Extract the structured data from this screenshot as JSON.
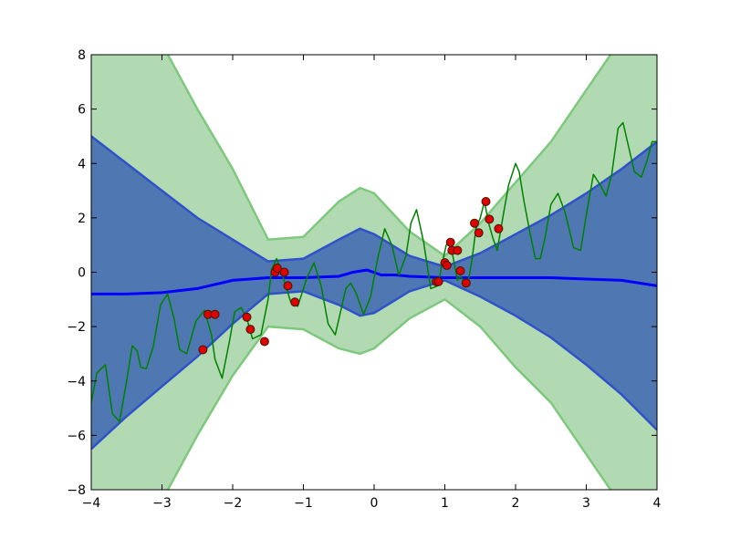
{
  "chart_data": {
    "type": "line",
    "title": "",
    "xlabel": "",
    "ylabel": "",
    "xlim": [
      -4,
      4
    ],
    "ylim": [
      -8,
      8
    ],
    "xticks": [
      -4,
      -3,
      -2,
      -1,
      0,
      1,
      2,
      3,
      4
    ],
    "yticks": [
      -8,
      -6,
      -4,
      -2,
      0,
      2,
      4,
      6,
      8
    ],
    "xtick_labels": [
      "−4",
      "−3",
      "−2",
      "−1",
      "0",
      "1",
      "2",
      "3",
      "4"
    ],
    "ytick_labels": [
      "−8",
      "−6",
      "−4",
      "−2",
      "0",
      "2",
      "4",
      "6",
      "8"
    ],
    "grid": false,
    "legend": "none",
    "colors": {
      "outer_band": "#b2dab2",
      "outer_band_edge": "#7ec87e",
      "inner_band": "#4f78b2",
      "inner_band_edge": "#2f52c8",
      "mean_line": "#0000ff",
      "true_function": "#008000",
      "points_fill": "#e00000",
      "points_edge": "#3a1c00"
    },
    "series": [
      {
        "kind": "band",
        "x": [
          -4,
          -3.5,
          -3,
          -2.5,
          -2,
          -1.5,
          -1,
          -0.5,
          -0.2,
          0,
          0.5,
          1,
          1.5,
          2,
          2.5,
          3,
          3.5,
          4
        ],
        "lower": [
          -11,
          -10,
          -8.4,
          -6.0,
          -3.8,
          -2.0,
          -2.1,
          -2.8,
          -3.0,
          -2.8,
          -1.7,
          -1.0,
          -2.0,
          -3.5,
          -4.8,
          -6.7,
          -8.6,
          -10.5
        ],
        "upper": [
          11,
          10,
          8.4,
          6.0,
          3.8,
          1.2,
          1.3,
          2.6,
          3.1,
          2.9,
          1.5,
          0.6,
          1.8,
          3.3,
          4.8,
          6.7,
          8.6,
          10.5
        ]
      },
      {
        "kind": "band",
        "x": [
          -4,
          -3.5,
          -3,
          -2.5,
          -2,
          -1.5,
          -1,
          -0.5,
          -0.2,
          0,
          0.5,
          1,
          1.5,
          2,
          2.5,
          3,
          3.5,
          4
        ],
        "lower": [
          -6.5,
          -5.3,
          -4.2,
          -3.1,
          -1.9,
          -0.8,
          -0.7,
          -1.2,
          -1.6,
          -1.5,
          -0.7,
          -0.3,
          -0.9,
          -1.6,
          -2.4,
          -3.4,
          -4.5,
          -5.8
        ],
        "upper": [
          5.0,
          4.0,
          3.0,
          2.0,
          1.2,
          0.4,
          0.5,
          1.2,
          1.6,
          1.4,
          0.6,
          0.2,
          0.7,
          1.4,
          2.1,
          2.9,
          3.8,
          4.8
        ]
      },
      {
        "kind": "mean",
        "x": [
          -4,
          -3.5,
          -3,
          -2.5,
          -2,
          -1.5,
          -1,
          -0.5,
          -0.3,
          -0.1,
          0.1,
          0.3,
          0.5,
          1,
          1.5,
          2,
          2.5,
          3,
          3.5,
          4
        ],
        "y": [
          -0.8,
          -0.8,
          -0.75,
          -0.6,
          -0.3,
          -0.2,
          -0.2,
          -0.15,
          0.0,
          0.08,
          -0.1,
          -0.1,
          -0.15,
          -0.2,
          -0.2,
          -0.2,
          -0.2,
          -0.25,
          -0.3,
          -0.5
        ]
      },
      {
        "kind": "true_function",
        "x": [
          -4,
          -3.92,
          -3.8,
          -3.7,
          -3.6,
          -3.5,
          -3.42,
          -3.35,
          -3.3,
          -3.22,
          -3.12,
          -3.02,
          -2.92,
          -2.83,
          -2.75,
          -2.65,
          -2.52,
          -2.4,
          -2.3,
          -2.25,
          -2.15,
          -2.05,
          -1.97,
          -1.88,
          -1.8,
          -1.72,
          -1.6,
          -1.5,
          -1.45,
          -1.38,
          -1.32,
          -1.25,
          -1.18,
          -1.08,
          -0.95,
          -0.85,
          -0.75,
          -0.65,
          -0.55,
          -0.47,
          -0.4,
          -0.33,
          -0.25,
          -0.15,
          -0.05,
          0.0,
          0.05,
          0.15,
          0.25,
          0.35,
          0.45,
          0.52,
          0.6,
          0.7,
          0.8,
          0.9,
          0.96,
          1.02,
          1.08,
          1.12,
          1.18,
          1.22,
          1.28,
          1.32,
          1.38,
          1.44,
          1.5,
          1.56,
          1.62,
          1.68,
          1.74,
          1.82,
          1.9,
          2.0,
          2.05,
          2.12,
          2.2,
          2.28,
          2.35,
          2.42,
          2.5,
          2.6,
          2.7,
          2.82,
          2.92,
          3.0,
          3.1,
          3.2,
          3.28,
          3.36,
          3.45,
          3.52,
          3.6,
          3.68,
          3.78,
          3.86,
          3.93,
          4.0
        ],
        "y": [
          -4.8,
          -3.7,
          -3.4,
          -5.2,
          -5.5,
          -4.0,
          -2.7,
          -2.9,
          -3.5,
          -3.55,
          -2.7,
          -1.2,
          -0.8,
          -1.7,
          -2.85,
          -3.0,
          -1.8,
          -1.4,
          -2.3,
          -3.2,
          -3.9,
          -2.6,
          -1.45,
          -1.3,
          -1.7,
          -2.45,
          -2.3,
          -1.0,
          0.1,
          0.5,
          0.1,
          -0.5,
          -1.1,
          -1.25,
          -0.2,
          0.35,
          -0.5,
          -1.9,
          -2.3,
          -1.4,
          -0.6,
          -0.4,
          -0.8,
          -1.55,
          -0.9,
          -0.2,
          0.5,
          1.6,
          1.0,
          -0.1,
          0.6,
          1.8,
          2.3,
          1.1,
          -0.6,
          -0.5,
          0.3,
          1.0,
          1.1,
          0.5,
          -0.3,
          -0.15,
          -0.4,
          -0.5,
          0.4,
          1.6,
          2.0,
          2.6,
          1.8,
          1.25,
          0.8,
          2.0,
          3.2,
          4.0,
          3.7,
          2.6,
          1.5,
          0.5,
          0.5,
          1.3,
          2.5,
          2.9,
          2.2,
          0.9,
          0.8,
          2.1,
          3.6,
          3.2,
          2.8,
          3.6,
          5.3,
          5.5,
          4.6,
          3.7,
          3.5,
          4.1,
          4.8,
          4.8
        ]
      }
    ],
    "points": {
      "x": [
        -2.42,
        -2.35,
        -2.25,
        -1.8,
        -1.75,
        -1.55,
        -1.4,
        -1.37,
        -1.27,
        -1.22,
        -1.12,
        0.88,
        0.91,
        1.0,
        1.03,
        1.08,
        1.1,
        1.18,
        1.22,
        1.3,
        1.42,
        1.48,
        1.58,
        1.63,
        1.76
      ],
      "y": [
        -2.85,
        -1.55,
        -1.55,
        -1.65,
        -2.1,
        -2.55,
        0.0,
        0.15,
        0.0,
        -0.5,
        -1.1,
        -0.35,
        -0.35,
        0.35,
        0.25,
        1.1,
        0.8,
        0.8,
        0.05,
        -0.4,
        1.8,
        1.45,
        2.6,
        1.95,
        1.6
      ]
    }
  }
}
